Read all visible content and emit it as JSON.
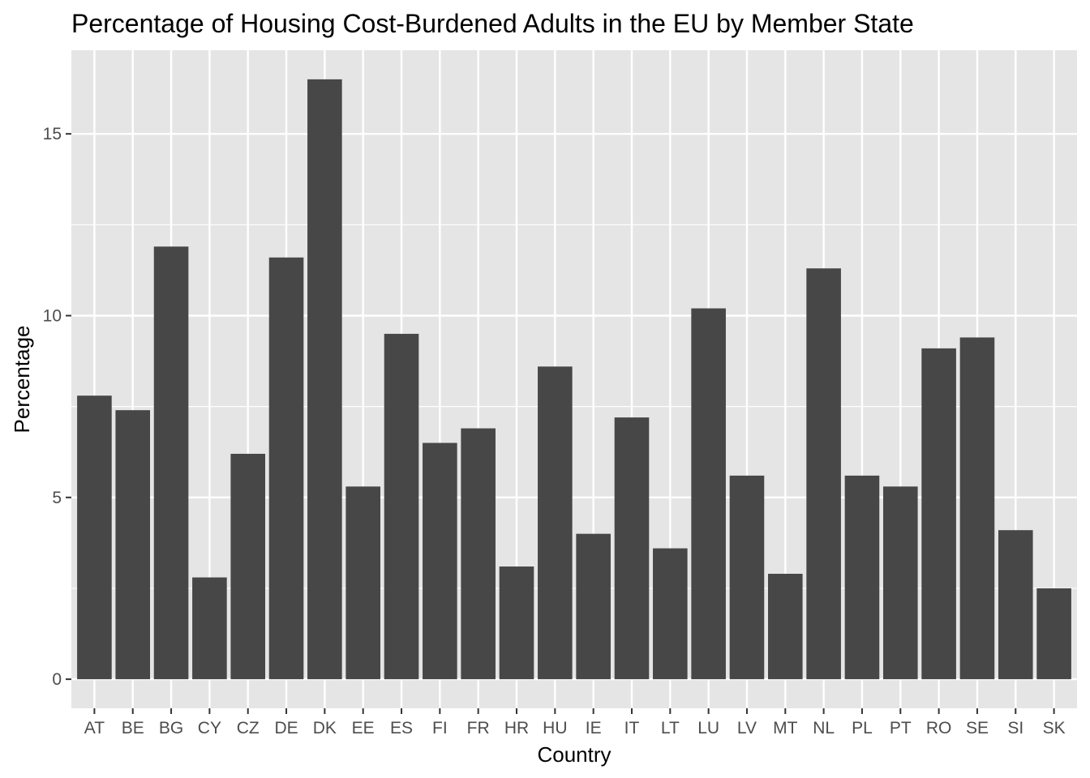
{
  "chart_data": {
    "type": "bar",
    "title": "Percentage of Housing Cost-Burdened Adults in the EU by Member State",
    "xlabel": "Country",
    "ylabel": "Percentage",
    "categories": [
      "AT",
      "BE",
      "BG",
      "CY",
      "CZ",
      "DE",
      "DK",
      "EE",
      "ES",
      "FI",
      "FR",
      "HR",
      "HU",
      "IE",
      "IT",
      "LT",
      "LU",
      "LV",
      "MT",
      "NL",
      "PL",
      "PT",
      "RO",
      "SE",
      "SI",
      "SK"
    ],
    "values": [
      7.8,
      7.4,
      11.9,
      2.8,
      6.2,
      11.6,
      16.5,
      5.3,
      9.5,
      6.5,
      6.9,
      3.1,
      8.6,
      4.0,
      7.2,
      3.6,
      10.2,
      5.6,
      2.9,
      11.3,
      5.6,
      5.3,
      9.1,
      9.4,
      4.1,
      2.5
    ],
    "yticks": [
      0,
      5,
      10,
      15
    ],
    "ylim": [
      -0.8,
      17.3
    ],
    "grid": true,
    "colors": {
      "panel": "#e5e5e5",
      "grid": "#ffffff",
      "bar": "#474747",
      "tick": "#333333"
    }
  }
}
